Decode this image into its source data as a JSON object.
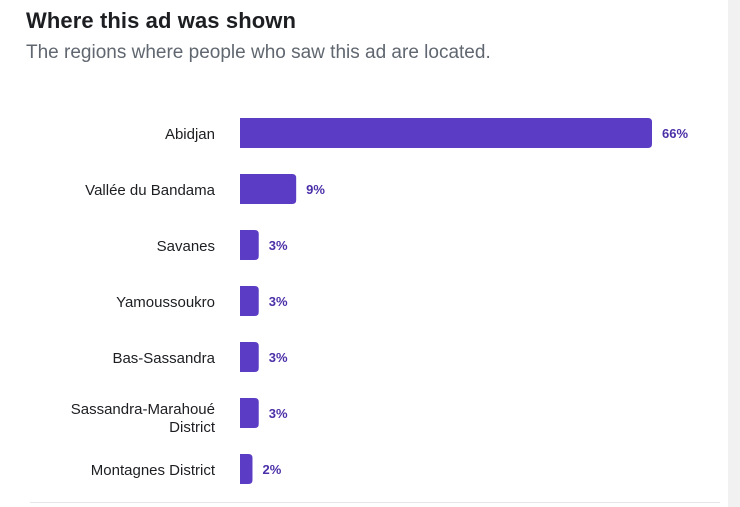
{
  "header": {
    "title": "Where this ad was shown",
    "subtitle": "The regions where people who saw this ad are located."
  },
  "colors": {
    "bar": "#5b3cc4",
    "value_label": "#4b2fa8",
    "category_label": "#1c1e21"
  },
  "chart_data": {
    "type": "bar",
    "orientation": "horizontal",
    "title": "Where this ad was shown",
    "subtitle": "The regions where people who saw this ad are located.",
    "categories": [
      [
        "Abidjan"
      ],
      [
        "Vallée du Bandama"
      ],
      [
        "Savanes"
      ],
      [
        "Yamoussoukro"
      ],
      [
        "Bas-Sassandra"
      ],
      [
        "Sassandra-Marahoué",
        "District"
      ],
      [
        "Montagnes District"
      ]
    ],
    "values": [
      66,
      9,
      3,
      3,
      3,
      3,
      2
    ],
    "value_labels": [
      "66%",
      "9%",
      "3%",
      "3%",
      "3%",
      "3%",
      "2%"
    ],
    "unit": "%",
    "grid": false,
    "legend": "none"
  }
}
